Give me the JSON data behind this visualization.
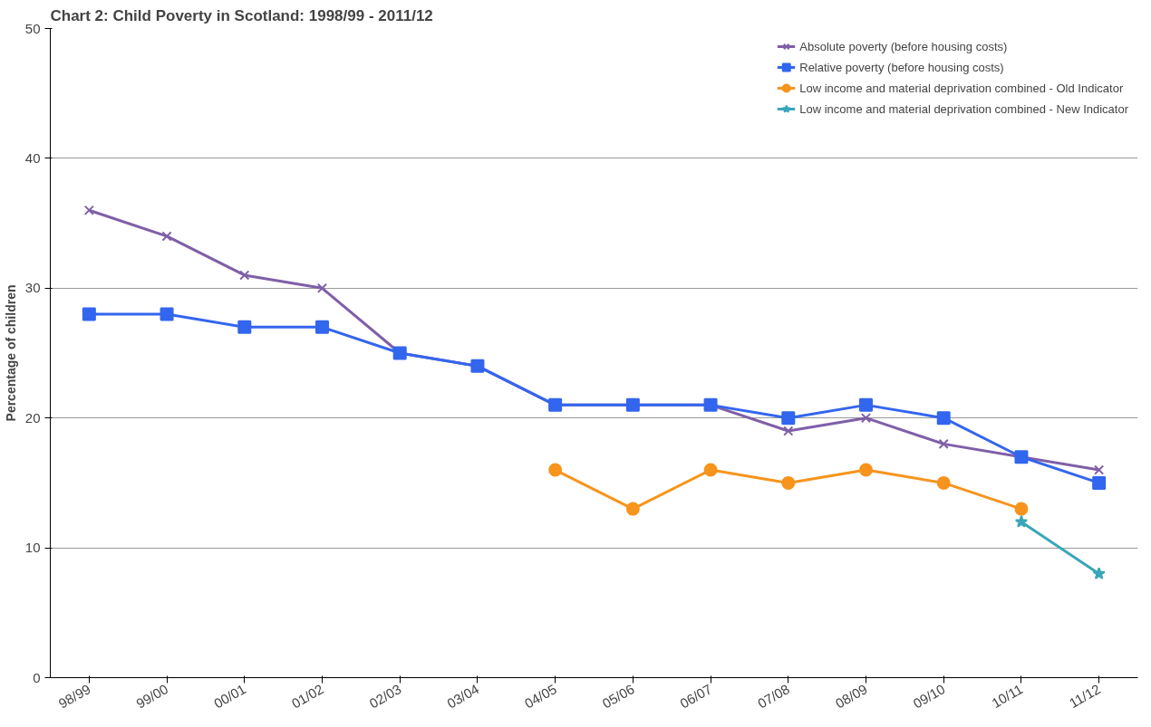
{
  "chart_data": {
    "type": "line",
    "title": "Chart 2: Child Poverty in Scotland: 1998/99 - 2011/12",
    "ylabel": "Percentage of children",
    "categories": [
      "98/99",
      "99/00",
      "00/01",
      "01/02",
      "02/03",
      "03/04",
      "04/05",
      "05/06",
      "06/07",
      "07/08",
      "08/09",
      "09/10",
      "10/11",
      "11/12"
    ],
    "series": [
      {
        "name": "Absolute poverty (before housing costs)",
        "color": "#7f5fa8",
        "marker": "cross",
        "values": [
          36,
          34,
          31,
          30,
          25,
          24,
          21,
          21,
          21,
          19,
          20,
          18,
          17,
          16
        ]
      },
      {
        "name": "Relative poverty (before housing costs)",
        "color": "#3366ee",
        "marker": "square",
        "values": [
          28,
          28,
          27,
          27,
          25,
          24,
          21,
          21,
          21,
          20,
          21,
          20,
          17,
          15
        ]
      },
      {
        "name": "Low income and material deprivation combined - Old Indicator",
        "color": "#f7941d",
        "marker": "circle",
        "values": [
          null,
          null,
          null,
          null,
          null,
          null,
          16,
          13,
          16,
          15,
          16,
          15,
          13,
          null
        ]
      },
      {
        "name": "Low income and material deprivation combined - New Indicator",
        "color": "#3aa6b9",
        "marker": "star",
        "values": [
          null,
          null,
          null,
          null,
          null,
          null,
          null,
          null,
          null,
          null,
          null,
          null,
          12,
          8
        ]
      }
    ],
    "ylim": [
      0,
      50
    ],
    "yticks": [
      0,
      10,
      20,
      30,
      40,
      50
    ],
    "grid": "y",
    "legend": "top right",
    "line_style": "solid"
  }
}
